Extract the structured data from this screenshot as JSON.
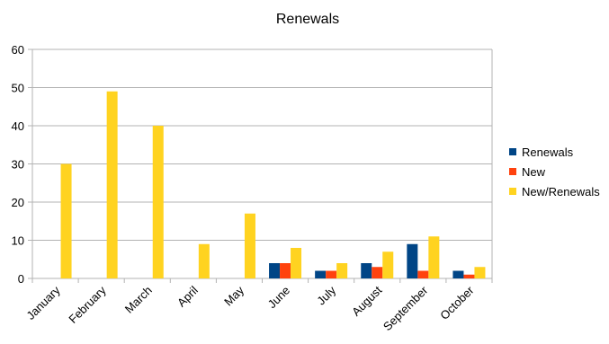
{
  "chart_data": {
    "type": "bar",
    "title": "Renewals",
    "xlabel": "",
    "ylabel": "",
    "categories": [
      "January",
      "February",
      "March",
      "April",
      "May",
      "June",
      "July",
      "August",
      "September",
      "October"
    ],
    "series": [
      {
        "name": "Renewals",
        "color": "#004586",
        "values": [
          0,
          0,
          0,
          0,
          0,
          4,
          2,
          4,
          9,
          2
        ]
      },
      {
        "name": "New",
        "color": "#ff420e",
        "values": [
          0,
          0,
          0,
          0,
          0,
          4,
          2,
          3,
          2,
          1
        ]
      },
      {
        "name": "New/Renewals",
        "color": "#ffd320",
        "values": [
          30,
          49,
          40,
          9,
          17,
          8,
          4,
          7,
          11,
          3
        ]
      }
    ],
    "ylim": [
      0,
      60
    ],
    "yticks": [
      "0",
      "10",
      "20",
      "30",
      "40",
      "50",
      "60"
    ],
    "grid": true,
    "legend_position": "right"
  }
}
